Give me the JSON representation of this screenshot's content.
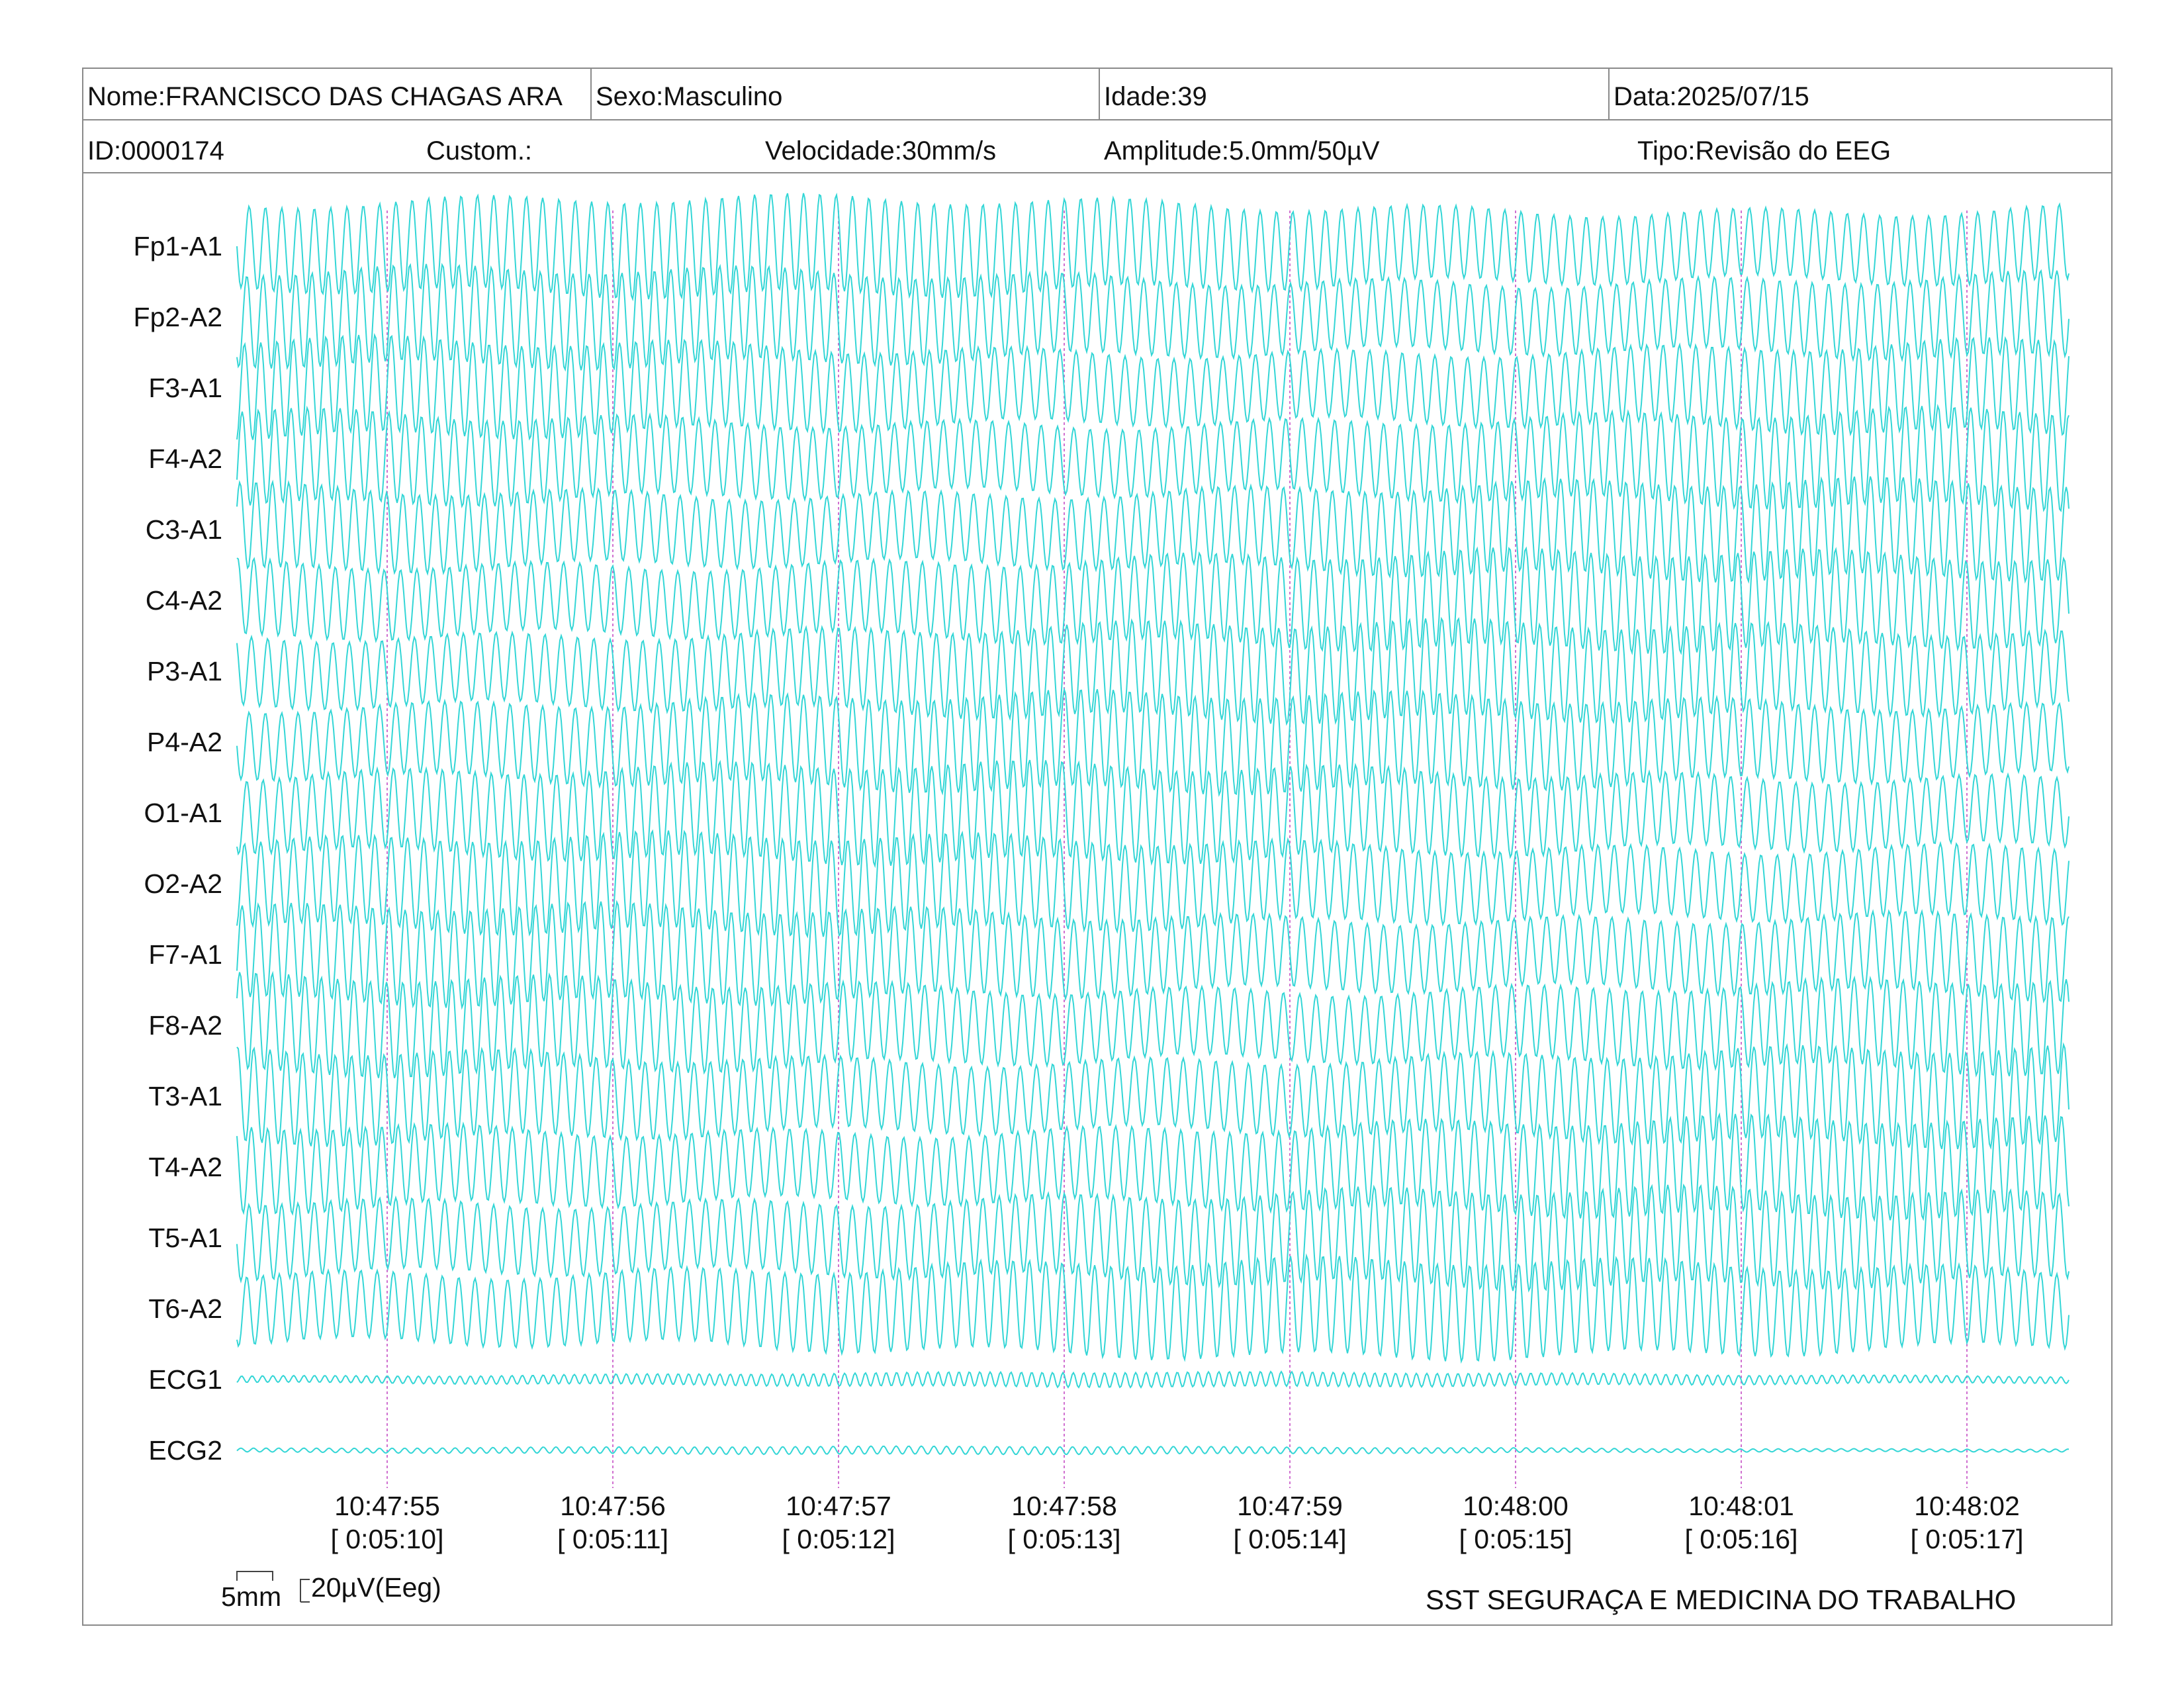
{
  "header": {
    "nome": "Nome:FRANCISCO DAS CHAGAS ARA",
    "sexo": "Sexo:Masculino",
    "idade": "Idade:39",
    "data": "Data:2025/07/15",
    "id": "ID:0000174",
    "custom": "Custom.:",
    "velocidade": "Velocidade:30mm/s",
    "amplitude": "Amplitude:5.0mm/50µV",
    "tipo": "Tipo:Revisão do EEG"
  },
  "chart_data": {
    "type": "line",
    "channels": [
      "Fp1-A1",
      "Fp2-A2",
      "F3-A1",
      "F4-A2",
      "C3-A1",
      "C4-A2",
      "P3-A1",
      "P4-A2",
      "O1-A1",
      "O2-A2",
      "F7-A1",
      "F8-A2",
      "T3-A1",
      "T4-A2",
      "T5-A1",
      "T6-A2",
      "ECG1",
      "ECG2"
    ],
    "time_marks": [
      {
        "clock": "10:47:55",
        "elapsed": "[ 0:05:10]"
      },
      {
        "clock": "10:47:56",
        "elapsed": "[ 0:05:11]"
      },
      {
        "clock": "10:47:57",
        "elapsed": "[ 0:05:12]"
      },
      {
        "clock": "10:47:58",
        "elapsed": "[ 0:05:13]"
      },
      {
        "clock": "10:47:59",
        "elapsed": "[ 0:05:14]"
      },
      {
        "clock": "10:48:00",
        "elapsed": "[ 0:05:15]"
      },
      {
        "clock": "10:48:01",
        "elapsed": "[ 0:05:16]"
      },
      {
        "clock": "10:48:02",
        "elapsed": "[ 0:05:17]"
      }
    ],
    "trace_color": "#33d6d6",
    "marker_color": "#d070d0",
    "grid": false
  },
  "scale": {
    "time_label": "5mm",
    "amp_label": "20µV(Eeg)"
  },
  "footer": "SST SEGURAÇA E MEDICINA DO TRABALHO"
}
